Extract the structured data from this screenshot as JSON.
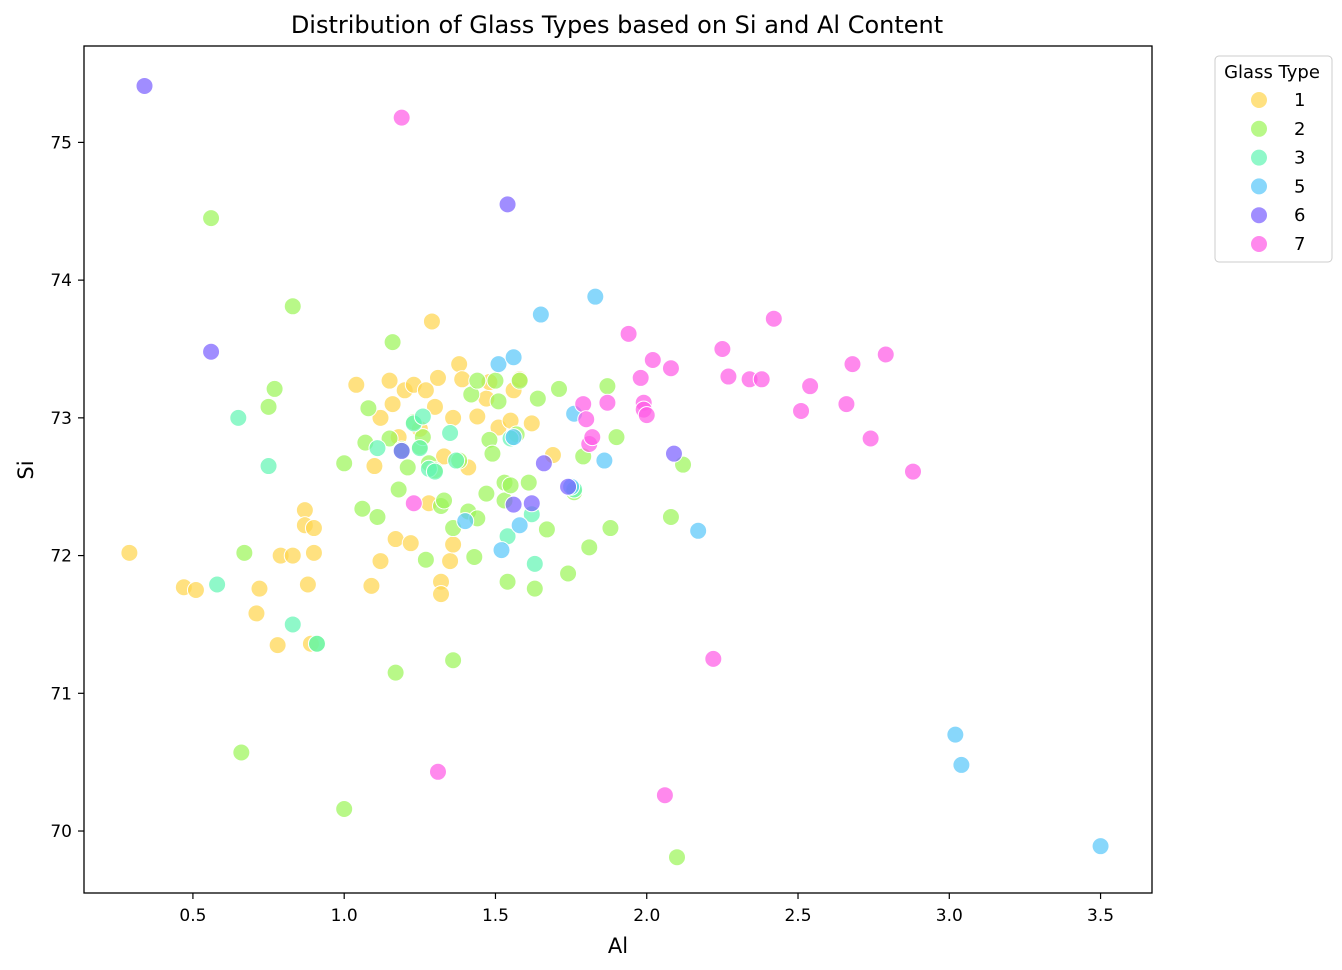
{
  "chart_data": {
    "type": "scatter",
    "title": "Distribution of Glass Types based on Si and Al Content",
    "xlabel": "Al",
    "ylabel": "Si",
    "xlim": [
      0.14,
      3.67
    ],
    "ylim": [
      69.55,
      75.7
    ],
    "x_ticks": [
      0.5,
      1.0,
      1.5,
      2.0,
      2.5,
      3.0,
      3.5
    ],
    "x_tick_labels": [
      "0.5",
      "1.0",
      "1.5",
      "2.0",
      "2.5",
      "3.0",
      "3.5"
    ],
    "y_ticks": [
      70,
      71,
      72,
      73,
      74,
      75
    ],
    "y_tick_labels": [
      "70",
      "71",
      "72",
      "73",
      "74",
      "75"
    ],
    "grid": false,
    "legend": {
      "title": "Glass Type",
      "placement": "outside-top-right"
    },
    "series": [
      {
        "name": "1",
        "color": "#ffd54f",
        "points": [
          [
            0.29,
            72.02
          ],
          [
            0.47,
            71.77
          ],
          [
            0.51,
            71.75
          ],
          [
            0.71,
            71.58
          ],
          [
            0.72,
            71.76
          ],
          [
            0.78,
            71.35
          ],
          [
            0.79,
            72.0
          ],
          [
            0.83,
            72.0
          ],
          [
            0.87,
            72.33
          ],
          [
            0.87,
            72.22
          ],
          [
            0.88,
            71.79
          ],
          [
            0.89,
            71.36
          ],
          [
            0.9,
            72.2
          ],
          [
            0.9,
            72.02
          ],
          [
            1.04,
            73.24
          ],
          [
            1.09,
            71.78
          ],
          [
            1.1,
            72.65
          ],
          [
            1.12,
            71.96
          ],
          [
            1.12,
            73.0
          ],
          [
            1.15,
            73.27
          ],
          [
            1.16,
            73.1
          ],
          [
            1.17,
            72.12
          ],
          [
            1.18,
            72.86
          ],
          [
            1.2,
            73.2
          ],
          [
            1.22,
            72.09
          ],
          [
            1.23,
            73.24
          ],
          [
            1.25,
            72.92
          ],
          [
            1.27,
            73.2
          ],
          [
            1.28,
            72.38
          ],
          [
            1.29,
            73.7
          ],
          [
            1.3,
            73.08
          ],
          [
            1.31,
            73.29
          ],
          [
            1.32,
            71.81
          ],
          [
            1.32,
            71.72
          ],
          [
            1.33,
            72.72
          ],
          [
            1.35,
            71.96
          ],
          [
            1.36,
            72.08
          ],
          [
            1.36,
            73.0
          ],
          [
            1.38,
            73.39
          ],
          [
            1.39,
            73.28
          ],
          [
            1.41,
            72.64
          ],
          [
            1.44,
            73.01
          ],
          [
            1.47,
            73.14
          ],
          [
            1.48,
            73.26
          ],
          [
            1.51,
            72.93
          ],
          [
            1.55,
            72.98
          ],
          [
            1.56,
            73.2
          ],
          [
            1.58,
            73.28
          ],
          [
            1.62,
            72.96
          ],
          [
            1.69,
            72.73
          ]
        ]
      },
      {
        "name": "2",
        "color": "#9cf55a",
        "points": [
          [
            0.56,
            74.45
          ],
          [
            0.66,
            70.57
          ],
          [
            0.67,
            72.02
          ],
          [
            0.75,
            73.08
          ],
          [
            0.77,
            73.21
          ],
          [
            0.83,
            73.81
          ],
          [
            0.91,
            71.36
          ],
          [
            1.0,
            70.16
          ],
          [
            1.0,
            72.67
          ],
          [
            1.06,
            72.34
          ],
          [
            1.07,
            72.82
          ],
          [
            1.08,
            73.07
          ],
          [
            1.11,
            72.28
          ],
          [
            1.15,
            72.85
          ],
          [
            1.16,
            73.55
          ],
          [
            1.17,
            71.15
          ],
          [
            1.18,
            72.48
          ],
          [
            1.19,
            72.77
          ],
          [
            1.21,
            72.64
          ],
          [
            1.23,
            72.97
          ],
          [
            1.25,
            72.79
          ],
          [
            1.26,
            72.86
          ],
          [
            1.27,
            71.97
          ],
          [
            1.28,
            72.67
          ],
          [
            1.3,
            72.62
          ],
          [
            1.32,
            72.36
          ],
          [
            1.33,
            72.4
          ],
          [
            1.36,
            71.24
          ],
          [
            1.36,
            72.2
          ],
          [
            1.38,
            72.69
          ],
          [
            1.41,
            72.32
          ],
          [
            1.42,
            73.17
          ],
          [
            1.43,
            71.99
          ],
          [
            1.44,
            72.27
          ],
          [
            1.44,
            73.27
          ],
          [
            1.47,
            72.45
          ],
          [
            1.48,
            72.84
          ],
          [
            1.49,
            72.74
          ],
          [
            1.5,
            73.27
          ],
          [
            1.51,
            73.12
          ],
          [
            1.53,
            72.53
          ],
          [
            1.53,
            72.4
          ],
          [
            1.54,
            71.81
          ],
          [
            1.55,
            72.51
          ],
          [
            1.57,
            72.88
          ],
          [
            1.58,
            73.27
          ],
          [
            1.61,
            72.53
          ],
          [
            1.63,
            71.76
          ],
          [
            1.64,
            73.14
          ],
          [
            1.67,
            72.19
          ],
          [
            1.71,
            73.21
          ],
          [
            1.74,
            71.87
          ],
          [
            1.76,
            72.46
          ],
          [
            1.79,
            72.72
          ],
          [
            1.81,
            72.06
          ],
          [
            1.87,
            73.23
          ],
          [
            1.88,
            72.2
          ],
          [
            1.9,
            72.86
          ],
          [
            2.08,
            72.28
          ],
          [
            2.1,
            69.81
          ],
          [
            2.12,
            72.66
          ]
        ]
      },
      {
        "name": "3",
        "color": "#64f5b4",
        "points": [
          [
            0.58,
            71.79
          ],
          [
            0.65,
            73.0
          ],
          [
            0.75,
            72.65
          ],
          [
            0.83,
            71.5
          ],
          [
            0.91,
            71.36
          ],
          [
            1.11,
            72.78
          ],
          [
            1.19,
            72.76
          ],
          [
            1.23,
            72.96
          ],
          [
            1.25,
            72.78
          ],
          [
            1.26,
            73.01
          ],
          [
            1.28,
            72.63
          ],
          [
            1.3,
            72.61
          ],
          [
            1.35,
            72.89
          ],
          [
            1.37,
            72.69
          ],
          [
            1.54,
            72.14
          ],
          [
            1.55,
            72.85
          ],
          [
            1.62,
            72.3
          ],
          [
            1.63,
            71.94
          ],
          [
            1.76,
            72.48
          ]
        ]
      },
      {
        "name": "5",
        "color": "#5ac8fa",
        "points": [
          [
            1.4,
            72.25
          ],
          [
            1.51,
            73.39
          ],
          [
            1.52,
            72.04
          ],
          [
            1.56,
            73.44
          ],
          [
            1.56,
            72.86
          ],
          [
            1.58,
            72.22
          ],
          [
            1.65,
            73.75
          ],
          [
            1.75,
            72.5
          ],
          [
            1.76,
            73.03
          ],
          [
            1.83,
            73.88
          ],
          [
            1.86,
            72.69
          ],
          [
            2.17,
            72.18
          ],
          [
            3.02,
            70.7
          ],
          [
            3.04,
            70.48
          ],
          [
            3.5,
            69.89
          ]
        ]
      },
      {
        "name": "6",
        "color": "#7b61ff",
        "points": [
          [
            0.34,
            75.41
          ],
          [
            0.56,
            73.48
          ],
          [
            1.19,
            72.76
          ],
          [
            1.54,
            74.55
          ],
          [
            1.56,
            72.37
          ],
          [
            1.62,
            72.38
          ],
          [
            1.66,
            72.67
          ],
          [
            1.74,
            72.5
          ],
          [
            2.09,
            72.74
          ]
        ]
      },
      {
        "name": "7",
        "color": "#ff5ce6",
        "points": [
          [
            1.19,
            75.18
          ],
          [
            1.23,
            72.38
          ],
          [
            1.31,
            70.43
          ],
          [
            1.79,
            73.1
          ],
          [
            1.8,
            72.99
          ],
          [
            1.81,
            72.81
          ],
          [
            1.82,
            72.86
          ],
          [
            1.87,
            73.11
          ],
          [
            1.94,
            73.61
          ],
          [
            1.98,
            73.29
          ],
          [
            1.99,
            73.11
          ],
          [
            1.99,
            73.06
          ],
          [
            2.0,
            73.02
          ],
          [
            2.02,
            73.42
          ],
          [
            2.06,
            70.26
          ],
          [
            2.08,
            73.36
          ],
          [
            2.22,
            71.25
          ],
          [
            2.25,
            73.5
          ],
          [
            2.27,
            73.3
          ],
          [
            2.34,
            73.28
          ],
          [
            2.38,
            73.28
          ],
          [
            2.42,
            73.72
          ],
          [
            2.51,
            73.05
          ],
          [
            2.54,
            73.23
          ],
          [
            2.66,
            73.1
          ],
          [
            2.68,
            73.39
          ],
          [
            2.74,
            72.85
          ],
          [
            2.79,
            73.46
          ],
          [
            2.88,
            72.61
          ]
        ]
      }
    ]
  }
}
